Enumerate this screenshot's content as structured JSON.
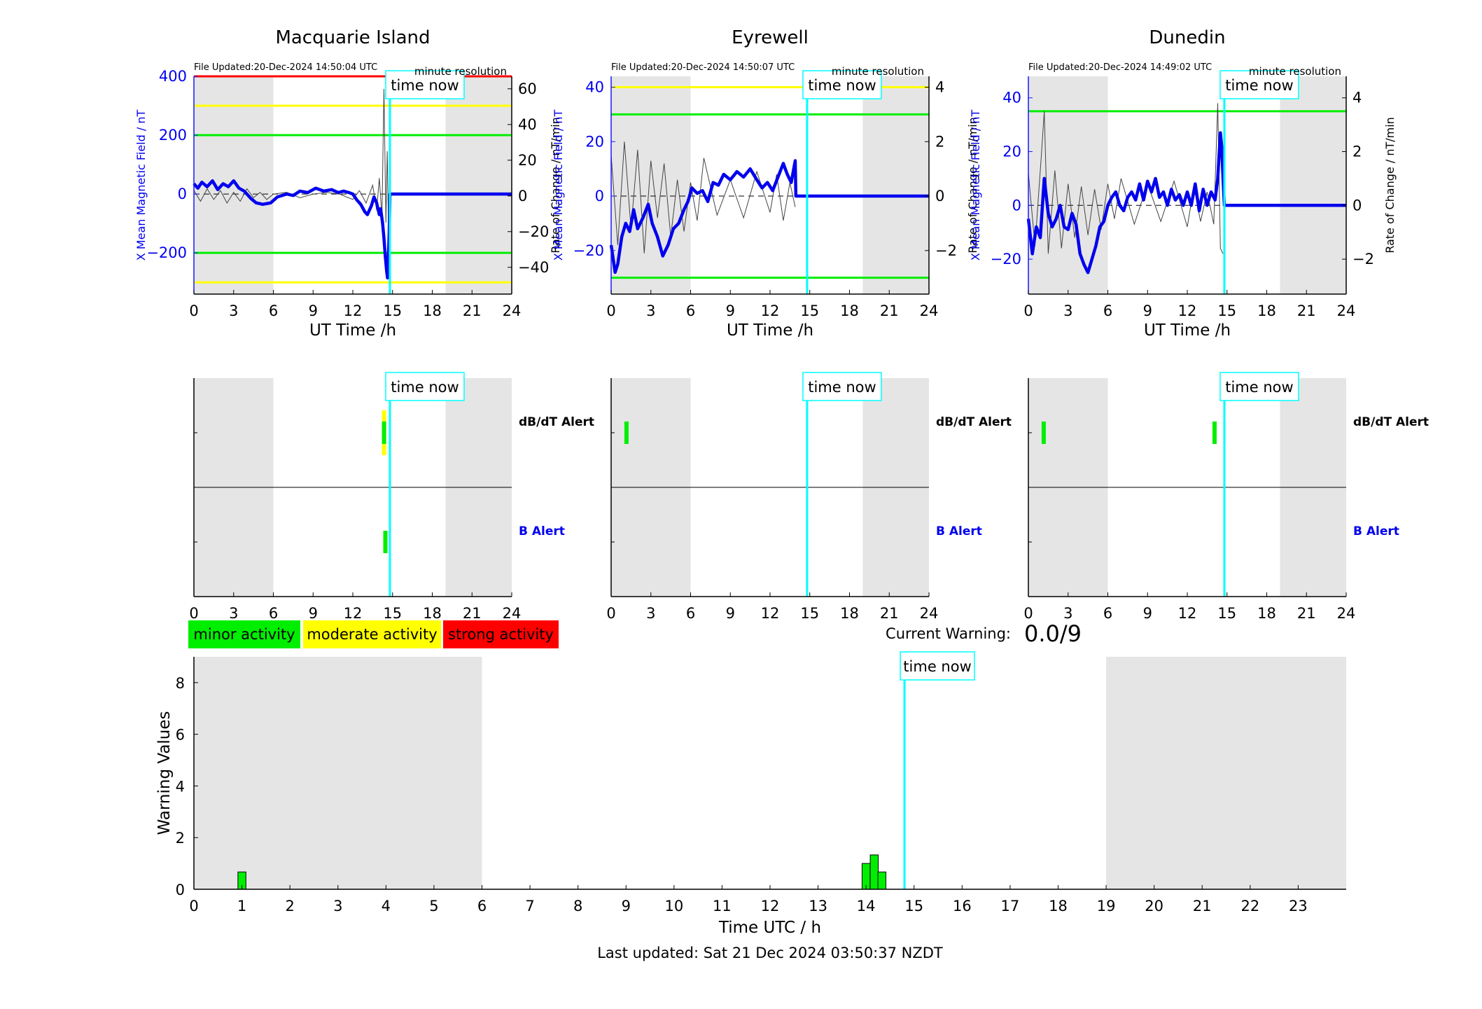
{
  "chart_data": [
    {
      "type": "line",
      "title": "Macquarie Island",
      "file_updated": "File Updated:20-Dec-2024 14:50:04 UTC",
      "resolution": "minute resolution",
      "xlabel": "UT Time /h",
      "ylabel": "X Mean Magnetic Field / nT",
      "y2label": "Rate of Change / nT/min",
      "xlim": [
        0,
        24
      ],
      "ylim": [
        -340,
        400
      ],
      "y2lim": [
        -55,
        67
      ],
      "xticks": [
        0,
        3,
        6,
        9,
        12,
        15,
        18,
        21,
        24
      ],
      "yticks": [
        -200,
        0,
        200,
        400
      ],
      "y2ticks": [
        -40,
        -20,
        0,
        20,
        40,
        60
      ],
      "night_shading": [
        [
          0,
          6
        ],
        [
          19,
          24
        ]
      ],
      "time_now": 14.8,
      "time_now_label": "time now",
      "thresholds": [
        {
          "value": 400,
          "color": "#ff0000"
        },
        {
          "value": 300,
          "color": "#ffff00"
        },
        {
          "value": 200,
          "color": "#00ee00"
        },
        {
          "value": -200,
          "color": "#00ee00"
        },
        {
          "value": -300,
          "color": "#ffff00"
        }
      ],
      "series": [
        {
          "color": "#0000ee",
          "x": [
            0,
            0.3,
            0.6,
            1,
            1.4,
            1.8,
            2.2,
            2.6,
            3,
            3.4,
            3.8,
            4.3,
            4.7,
            5.2,
            5.8,
            6.3,
            7,
            7.5,
            8,
            8.6,
            9.2,
            9.8,
            10.4,
            10.9,
            11.3,
            11.7,
            12,
            12.3,
            12.6,
            12.9,
            13.1,
            13.4,
            13.6,
            13.8,
            14,
            14.1,
            14.25,
            14.35,
            14.45,
            14.55,
            14.62,
            14.7,
            14.75,
            14.8,
            24
          ],
          "y": [
            35,
            20,
            40,
            25,
            45,
            15,
            35,
            25,
            45,
            20,
            10,
            -15,
            -30,
            -35,
            -30,
            -10,
            0,
            -5,
            10,
            5,
            20,
            10,
            15,
            5,
            10,
            5,
            0,
            -20,
            -35,
            -60,
            -70,
            -40,
            -10,
            -30,
            -70,
            -50,
            -100,
            -150,
            -210,
            -260,
            -285,
            -200,
            -130,
            0,
            0
          ]
        },
        {
          "color": "#444444",
          "x": [
            0,
            0.5,
            1,
            1.5,
            2,
            2.5,
            3,
            3.5,
            4,
            4.5,
            5,
            5.5,
            6,
            7,
            8,
            9,
            10,
            11,
            12,
            12.5,
            13,
            13.5,
            13.8,
            14,
            14.2,
            14.35,
            14.5,
            14.6,
            14.7,
            14.8
          ],
          "y2": [
            3,
            -3,
            4,
            -2,
            3,
            -4,
            2,
            -3,
            4,
            -1,
            2,
            -2,
            1,
            2,
            -1,
            1,
            2,
            1,
            -2,
            3,
            -4,
            6,
            -8,
            10,
            -12,
            60,
            -15,
            25,
            -20,
            0
          ]
        }
      ]
    },
    {
      "type": "line",
      "title": "Eyrewell",
      "file_updated": "File Updated:20-Dec-2024 14:50:07 UTC",
      "resolution": "minute resolution",
      "xlabel": "UT Time /h",
      "ylabel": "X Mean Magnetic Field / nT",
      "y2label": "Rate of Change / nT/min",
      "xlim": [
        0,
        24
      ],
      "ylim": [
        -36,
        44
      ],
      "y2lim": [
        -3.6,
        4.4
      ],
      "xticks": [
        0,
        3,
        6,
        9,
        12,
        15,
        18,
        21,
        24
      ],
      "yticks": [
        -20,
        0,
        20,
        40
      ],
      "y2ticks": [
        -2,
        0,
        2,
        4
      ],
      "night_shading": [
        [
          0,
          6
        ],
        [
          19,
          24
        ]
      ],
      "time_now": 14.8,
      "time_now_label": "time now",
      "thresholds": [
        {
          "value": 40,
          "color": "#ffff00"
        },
        {
          "value": 30,
          "color": "#00ee00"
        },
        {
          "value": -30,
          "color": "#00ee00"
        }
      ],
      "series": [
        {
          "color": "#0000ee",
          "x": [
            0,
            0.3,
            0.5,
            0.8,
            1.1,
            1.4,
            1.7,
            2,
            2.4,
            2.8,
            3.1,
            3.5,
            3.9,
            4.3,
            4.7,
            5.1,
            5.5,
            5.8,
            6.1,
            6.5,
            6.9,
            7.3,
            7.7,
            8.1,
            8.5,
            9,
            9.5,
            10,
            10.5,
            11,
            11.4,
            11.8,
            12.2,
            12.6,
            13,
            13.3,
            13.6,
            13.9,
            13.95,
            24
          ],
          "y": [
            -18,
            -28,
            -25,
            -15,
            -10,
            -13,
            -5,
            -12,
            -8,
            -3,
            -10,
            -15,
            -22,
            -18,
            -12,
            -10,
            -5,
            -2,
            3,
            1,
            2,
            -2,
            5,
            4,
            8,
            6,
            9,
            7,
            10,
            6,
            3,
            5,
            2,
            7,
            12,
            8,
            5,
            13,
            0,
            0
          ]
        },
        {
          "color": "#444444",
          "x": [
            0,
            0.5,
            1,
            1.5,
            2,
            2.5,
            3,
            3.5,
            4,
            4.5,
            5,
            5.5,
            6,
            6.5,
            7,
            8,
            9,
            10,
            11,
            12,
            12.5,
            13,
            13.5,
            13.9
          ],
          "y2": [
            1.5,
            -1.8,
            2,
            -1.2,
            1.7,
            -2.1,
            1.3,
            -0.8,
            1.2,
            -1.5,
            0.6,
            -1.3,
            0.5,
            -0.9,
            1.4,
            -0.7,
            0.6,
            -0.8,
            0.9,
            -0.6,
            0.8,
            -0.9,
            0.5,
            -0.4
          ]
        }
      ]
    },
    {
      "type": "line",
      "title": "Dunedin",
      "file_updated": "File Updated:20-Dec-2024 14:49:02 UTC",
      "resolution": "minute resolution",
      "xlabel": "UT Time /h",
      "ylabel": "X Mean Magnetic Field / nT",
      "y2label": "Rate of Change / nT/min",
      "xlim": [
        0,
        24
      ],
      "ylim": [
        -33,
        48
      ],
      "y2lim": [
        -3.3,
        4.8
      ],
      "xticks": [
        0,
        3,
        6,
        9,
        12,
        15,
        18,
        21,
        24
      ],
      "yticks": [
        -20,
        0,
        20,
        40
      ],
      "y2ticks": [
        -2,
        0,
        2,
        4
      ],
      "night_shading": [
        [
          0,
          6
        ],
        [
          19,
          24
        ]
      ],
      "time_now": 14.8,
      "time_now_label": "time now",
      "thresholds": [
        {
          "value": 35,
          "color": "#00ee00"
        }
      ],
      "series": [
        {
          "color": "#0000ee",
          "x": [
            0,
            0.3,
            0.6,
            0.9,
            1.2,
            1.5,
            1.8,
            2.1,
            2.4,
            2.7,
            3,
            3.3,
            3.6,
            3.9,
            4.2,
            4.5,
            4.8,
            5.1,
            5.4,
            5.7,
            6,
            6.3,
            6.6,
            6.9,
            7.2,
            7.5,
            7.8,
            8.1,
            8.4,
            8.7,
            9,
            9.3,
            9.6,
            9.9,
            10.2,
            10.5,
            10.8,
            11.1,
            11.4,
            11.7,
            12,
            12.3,
            12.6,
            12.9,
            13.2,
            13.5,
            13.8,
            14.1,
            14.3,
            14.5,
            14.6,
            14.7,
            14.8,
            24
          ],
          "y": [
            -5,
            -18,
            -8,
            -12,
            10,
            -3,
            -8,
            -5,
            0,
            -8,
            -9,
            -3,
            -7,
            -18,
            -22,
            -25,
            -20,
            -15,
            -8,
            -6,
            0,
            3,
            5,
            0,
            -2,
            3,
            5,
            2,
            8,
            2,
            9,
            5,
            10,
            3,
            5,
            0,
            6,
            2,
            4,
            0,
            5,
            0,
            8,
            -2,
            6,
            0,
            5,
            2,
            10,
            27,
            22,
            10,
            0,
            0
          ]
        },
        {
          "color": "#444444",
          "x": [
            0,
            0.5,
            1,
            1.2,
            1.5,
            2,
            2.5,
            3,
            3.5,
            4,
            4.5,
            5,
            5.5,
            6,
            6.5,
            7,
            8,
            9,
            10,
            11,
            12,
            12.5,
            13,
            13.5,
            14,
            14.3,
            14.5,
            14.7
          ],
          "y2": [
            1.2,
            -1.5,
            2,
            3.5,
            -1.8,
            1.3,
            -1.6,
            0.8,
            -1.2,
            0.7,
            -1.1,
            0.6,
            -0.9,
            0.8,
            -0.5,
            1,
            -0.7,
            0.8,
            -0.6,
            0.9,
            -0.8,
            0.7,
            -0.6,
            0.5,
            -0.7,
            3.8,
            -1.6,
            -1.8
          ]
        }
      ]
    },
    {
      "type": "bar",
      "station": "Macquarie Island",
      "xlim": [
        0,
        24
      ],
      "xticks": [
        0,
        3,
        6,
        9,
        12,
        15,
        18,
        21,
        24
      ],
      "night_shading": [
        [
          0,
          6
        ],
        [
          19,
          24
        ]
      ],
      "time_now": 14.8,
      "time_now_label": "time now",
      "row_labels": {
        "dbdt": "dB/dT Alert",
        "b": "B Alert"
      },
      "dbdt_alerts": [
        {
          "start": 14.2,
          "end": 14.45,
          "level": "moderate"
        },
        {
          "start": 14.2,
          "end": 14.4,
          "level": "minor"
        }
      ],
      "b_alerts": [
        {
          "start": 14.3,
          "end": 14.6,
          "level": "minor"
        }
      ]
    },
    {
      "type": "bar",
      "station": "Eyrewell",
      "xlim": [
        0,
        24
      ],
      "xticks": [
        0,
        3,
        6,
        9,
        12,
        15,
        18,
        21,
        24
      ],
      "night_shading": [
        [
          0,
          6
        ],
        [
          19,
          24
        ]
      ],
      "time_now": 14.8,
      "time_now_label": "time now",
      "row_labels": {
        "dbdt": "dB/dT Alert",
        "b": "B Alert"
      },
      "dbdt_alerts": [
        {
          "start": 1.0,
          "end": 1.25,
          "level": "minor"
        }
      ],
      "b_alerts": []
    },
    {
      "type": "bar",
      "station": "Dunedin",
      "xlim": [
        0,
        24
      ],
      "xticks": [
        0,
        3,
        6,
        9,
        12,
        15,
        18,
        21,
        24
      ],
      "night_shading": [
        [
          0,
          6
        ],
        [
          19,
          24
        ]
      ],
      "time_now": 14.8,
      "time_now_label": "time now",
      "row_labels": {
        "dbdt": "dB/dT Alert",
        "b": "B Alert"
      },
      "dbdt_alerts": [
        {
          "start": 1.0,
          "end": 1.25,
          "level": "minor"
        },
        {
          "start": 13.9,
          "end": 14.15,
          "level": "minor"
        }
      ],
      "b_alerts": []
    },
    {
      "type": "bar",
      "xlabel": "Time UTC / h",
      "ylabel": "Warning Values",
      "xlim": [
        0,
        24
      ],
      "ylim": [
        0,
        9
      ],
      "xticks": [
        0,
        1,
        2,
        3,
        4,
        5,
        6,
        7,
        8,
        9,
        10,
        11,
        12,
        13,
        14,
        15,
        16,
        17,
        18,
        19,
        20,
        21,
        22,
        23
      ],
      "yticks": [
        0,
        2,
        4,
        6,
        8
      ],
      "night_shading": [
        [
          0,
          6
        ],
        [
          19,
          24
        ]
      ],
      "time_now": 14.8,
      "time_now_label": "time now",
      "bars": [
        {
          "x": 1.0,
          "value": 0.67
        },
        {
          "x": 14.0,
          "value": 1.0
        },
        {
          "x": 14.17,
          "value": 1.33
        },
        {
          "x": 14.33,
          "value": 0.67
        }
      ]
    }
  ],
  "legend": {
    "minor": "minor activity",
    "moderate": "moderate activity",
    "strong": "strong activity"
  },
  "colors": {
    "minor": "#00ee00",
    "moderate": "#ffff00",
    "strong": "#ff0000",
    "time_now": "#00ffff",
    "field": "#0000ee",
    "night": "#e5e5e5"
  },
  "current_warning": {
    "label": "Current Warning:",
    "value": "0.0/9"
  },
  "footer": {
    "last_updated": "Last updated: Sat 21 Dec 2024 03:50:37 NZDT"
  }
}
